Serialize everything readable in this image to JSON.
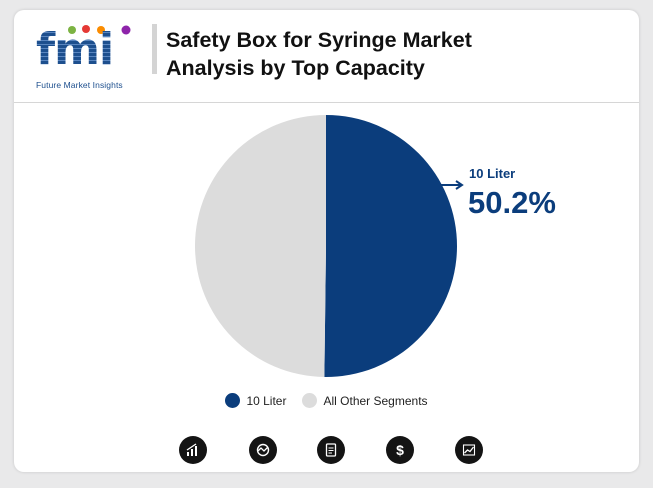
{
  "brand": {
    "logo_letters": "fmi",
    "logo_subtitle": "Future Market Insights"
  },
  "title": {
    "line1": "Safety Box for Syringe Market",
    "line2": "Analysis by Top Capacity"
  },
  "colors": {
    "primary": "#0b3d7c",
    "secondary": "#dcdcdc"
  },
  "chart_data": {
    "type": "pie",
    "title": "",
    "slices": [
      {
        "label": "10 Liter",
        "value": 50.2,
        "color": "#0b3d7c"
      },
      {
        "label": "All Other Segments",
        "value": 49.8,
        "color": "#dcdcdc"
      }
    ],
    "callout": {
      "label": "10 Liter",
      "value_text": "50.2%"
    },
    "legend_position": "bottom"
  },
  "legend": [
    {
      "label": "10 Liter",
      "color": "#0b3d7c"
    },
    {
      "label": "All Other Segments",
      "color": "#dcdcdc"
    }
  ],
  "footer_icons": [
    {
      "name": "bar-growth-icon"
    },
    {
      "name": "analysis-cycle-icon"
    },
    {
      "name": "document-icon"
    },
    {
      "name": "dollar-icon"
    },
    {
      "name": "trend-chart-icon"
    }
  ]
}
